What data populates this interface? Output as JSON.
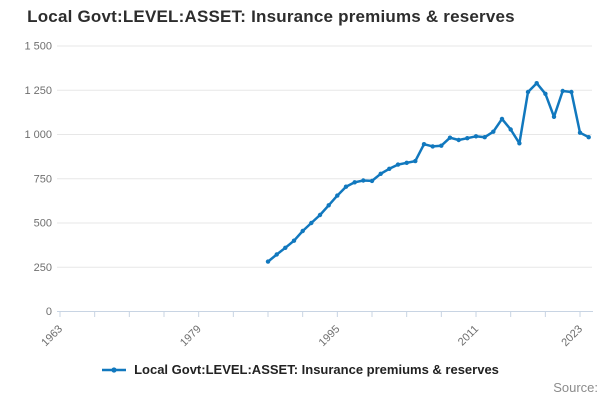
{
  "title": "Local Govt:LEVEL:ASSET: Insurance premiums & reserves",
  "legend": {
    "label": "Local Govt:LEVEL:ASSET: Insurance premiums & reserves"
  },
  "source": "Source:",
  "colors": {
    "line": "#1178be",
    "marker": "#1178be",
    "grid": "#e7e7e7",
    "axis": "#c8d4e3",
    "tick_label": "#6f6f6f",
    "title": "#2d2d2d",
    "legend_text": "#222222",
    "source_text": "#8c8c8c"
  },
  "chart_data": {
    "type": "line",
    "title": "Local Govt:LEVEL:ASSET: Insurance premiums & reserves",
    "series_name": "Local Govt:LEVEL:ASSET: Insurance premiums & reserves",
    "x": [
      1987,
      1988,
      1989,
      1990,
      1991,
      1992,
      1993,
      1994,
      1995,
      1996,
      1997,
      1998,
      1999,
      2000,
      2001,
      2002,
      2003,
      2004,
      2005,
      2006,
      2007,
      2008,
      2009,
      2010,
      2011,
      2012,
      2013,
      2014,
      2015,
      2016,
      2017,
      2018,
      2019,
      2020,
      2021,
      2022,
      2023,
      2024
    ],
    "values": [
      282,
      322,
      360,
      400,
      455,
      500,
      545,
      600,
      655,
      705,
      730,
      740,
      738,
      778,
      806,
      830,
      840,
      850,
      945,
      933,
      937,
      982,
      969,
      979,
      990,
      985,
      1016,
      1088,
      1028,
      950,
      1240,
      1290,
      1230,
      1100,
      1246,
      1240,
      1010,
      985
    ],
    "x_axis": {
      "tick_start": 1963,
      "tick_end": 2023,
      "tick_step": 4,
      "labeled_ticks": [
        1963,
        1979,
        1995,
        2011,
        2023
      ],
      "label_rotation_deg": -45
    },
    "y_axis": {
      "min": 0,
      "max": 1500,
      "tick_step": 250,
      "tick_values": [
        0,
        250,
        500,
        750,
        1000,
        1250,
        1500
      ],
      "tick_labels": [
        "0",
        "250",
        "500",
        "750",
        "1 000",
        "1 250",
        "1 500"
      ]
    },
    "grid": true,
    "marker": "circle",
    "legend_position": "bottom"
  }
}
